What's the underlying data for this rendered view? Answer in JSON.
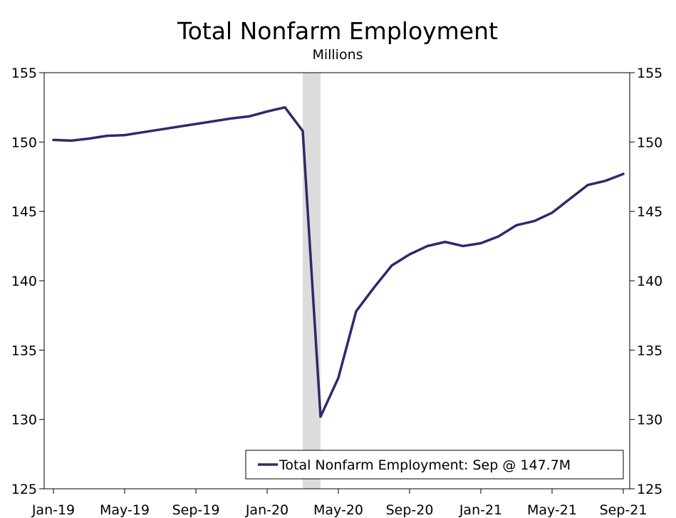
{
  "chart_data": {
    "type": "line",
    "title": "Total Nonfarm Employment",
    "subtitle": "Millions",
    "ylim": [
      125,
      155
    ],
    "y_ticks": [
      125,
      130,
      135,
      140,
      145,
      150,
      155
    ],
    "x_tick_labels": [
      "Jan-19",
      "May-19",
      "Sep-19",
      "Jan-20",
      "May-20",
      "Sep-20",
      "Jan-21",
      "May-21",
      "Sep-21"
    ],
    "x": [
      "Jan-19",
      "Feb-19",
      "Mar-19",
      "Apr-19",
      "May-19",
      "Jun-19",
      "Jul-19",
      "Aug-19",
      "Sep-19",
      "Oct-19",
      "Nov-19",
      "Dec-19",
      "Jan-20",
      "Feb-20",
      "Mar-20",
      "Apr-20",
      "May-20",
      "Jun-20",
      "Jul-20",
      "Aug-20",
      "Sep-20",
      "Oct-20",
      "Nov-20",
      "Dec-20",
      "Jan-21",
      "Feb-21",
      "Mar-21",
      "Apr-21",
      "May-21",
      "Jun-21",
      "Jul-21",
      "Aug-21",
      "Sep-21"
    ],
    "series": [
      {
        "name": "Total Nonfarm Employment",
        "color": "#2e2a6b",
        "values": [
          150.15,
          150.1,
          150.25,
          150.45,
          150.5,
          150.7,
          150.9,
          151.1,
          151.3,
          151.5,
          151.7,
          151.85,
          152.2,
          152.5,
          150.8,
          130.2,
          133.0,
          137.8,
          139.5,
          141.1,
          141.9,
          142.5,
          142.8,
          142.5,
          142.7,
          143.2,
          144.0,
          144.3,
          144.9,
          145.9,
          146.9,
          147.2,
          147.7
        ]
      }
    ],
    "shaded_region": {
      "start": "Mar-20",
      "end": "Apr-20",
      "color": "#dcdcdc"
    },
    "legend": {
      "text": "Total Nonfarm Employment: Sep @ 147.7M",
      "position": "bottom-right"
    },
    "grid": false
  }
}
